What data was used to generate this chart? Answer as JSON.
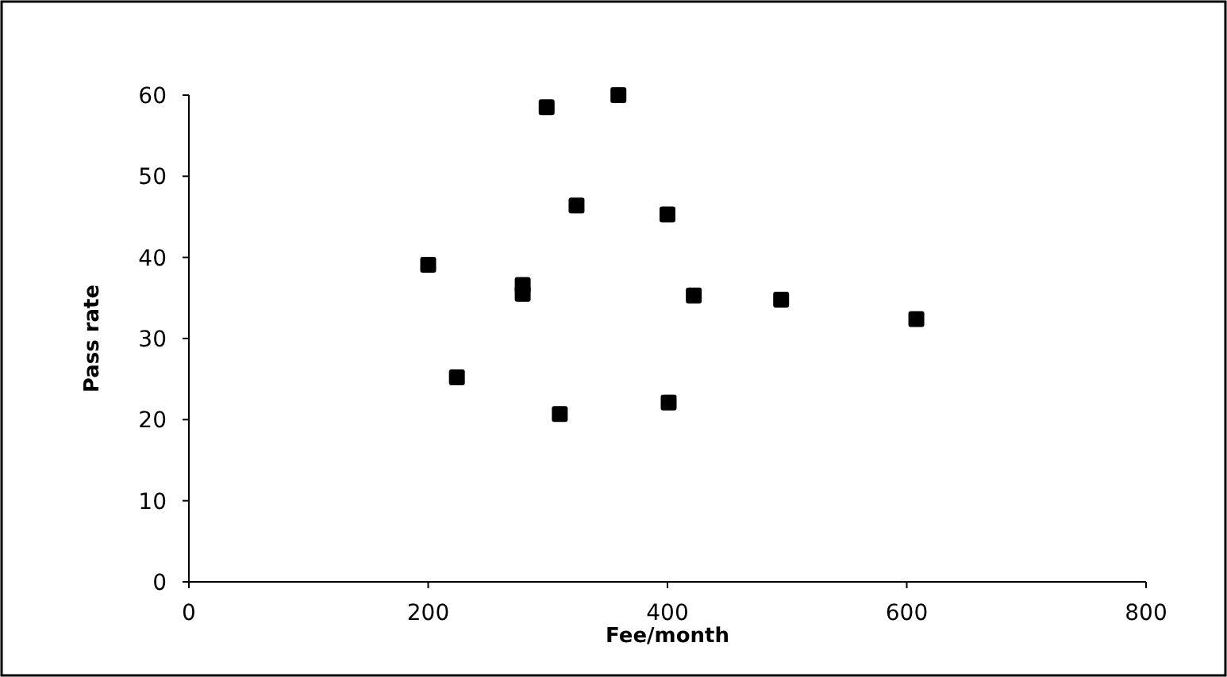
{
  "chart_data": {
    "type": "scatter",
    "xlabel": "Fee/month",
    "ylabel": "Pass rate",
    "x": [
      200,
      224,
      279,
      279,
      299,
      310,
      324,
      359,
      400,
      401,
      422,
      495,
      608
    ],
    "values": [
      39.1,
      25.2,
      36.6,
      35.5,
      58.5,
      20.7,
      46.4,
      60,
      45.3,
      22.1,
      35.3,
      34.8,
      32.4
    ],
    "color": "#000000",
    "marker": "square",
    "xlim": [
      0,
      800
    ],
    "xticks": [
      0,
      200,
      400,
      600,
      800
    ],
    "ylim": [
      0,
      60
    ],
    "yticks": [
      0,
      10,
      20,
      30,
      40,
      50,
      60
    ],
    "grid": false
  }
}
